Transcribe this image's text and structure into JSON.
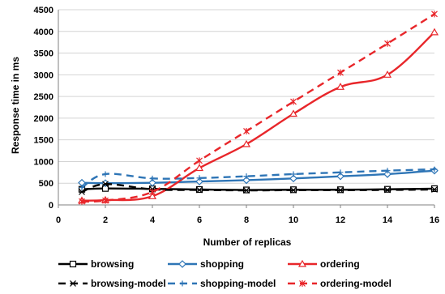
{
  "chart_data": {
    "type": "line",
    "title": "",
    "xlabel": "Number of replicas",
    "ylabel": "Response time in ms",
    "xlim": [
      0,
      16
    ],
    "ylim": [
      0,
      4500
    ],
    "xticks": [
      0,
      2,
      4,
      6,
      8,
      10,
      12,
      14,
      16
    ],
    "yticks": [
      0,
      500,
      1000,
      1500,
      2000,
      2500,
      3000,
      3500,
      4000,
      4500
    ],
    "grid": "horizontal",
    "legend": "bottom",
    "series": [
      {
        "name": "browsing",
        "color": "#000000",
        "dash": "solid",
        "marker": "square",
        "x": [
          1,
          2,
          4,
          6,
          8,
          10,
          12,
          14,
          16
        ],
        "y": [
          360,
          380,
          370,
          355,
          345,
          350,
          350,
          360,
          375
        ]
      },
      {
        "name": "shopping",
        "color": "#2E75B6",
        "dash": "solid",
        "marker": "diamond",
        "x": [
          1,
          2,
          4,
          6,
          8,
          10,
          12,
          14,
          16
        ],
        "y": [
          510,
          500,
          510,
          540,
          570,
          610,
          660,
          710,
          790
        ]
      },
      {
        "name": "ordering",
        "color": "#E8262A",
        "dash": "solid",
        "marker": "triangle",
        "x": [
          1,
          2,
          4,
          6,
          8,
          10,
          12,
          14,
          16
        ],
        "y": [
          100,
          110,
          200,
          850,
          1400,
          2100,
          2720,
          3000,
          3980
        ]
      },
      {
        "name": "browsing-model",
        "color": "#000000",
        "dash": "dashed",
        "marker": "star",
        "x": [
          1,
          2,
          4,
          6,
          8,
          10,
          12,
          14,
          16
        ],
        "y": [
          300,
          480,
          360,
          345,
          335,
          340,
          340,
          345,
          355
        ]
      },
      {
        "name": "shopping-model",
        "color": "#2E75B6",
        "dash": "dashed",
        "marker": "plus",
        "x": [
          1,
          2,
          4,
          6,
          8,
          10,
          12,
          14,
          16
        ],
        "y": [
          400,
          710,
          610,
          620,
          660,
          710,
          750,
          790,
          820
        ]
      },
      {
        "name": "ordering-model",
        "color": "#E8262A",
        "dash": "dashed",
        "marker": "asterisk",
        "x": [
          1,
          2,
          4,
          6,
          8,
          10,
          12,
          14,
          16
        ],
        "y": [
          80,
          100,
          300,
          1020,
          1700,
          2380,
          3050,
          3720,
          4400
        ]
      }
    ]
  }
}
